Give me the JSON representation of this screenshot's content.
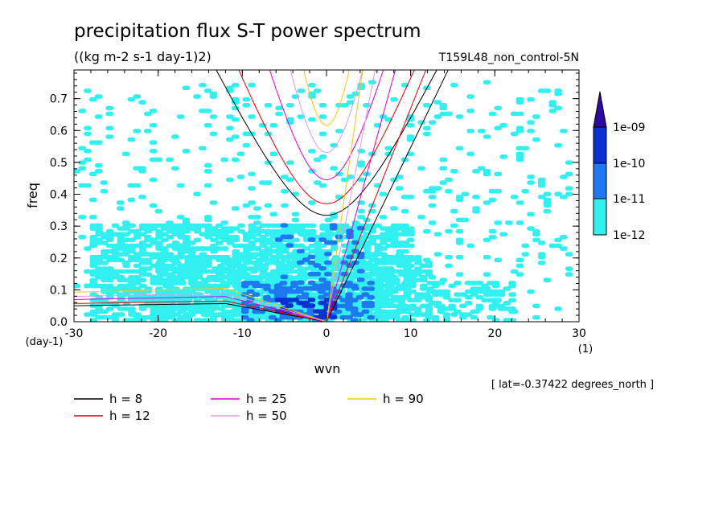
{
  "title": "precipitation flux S-T power spectrum",
  "units": "((kg m-2 s-1 day-1)2)",
  "run_label": "T159L48_non_control-5N",
  "footnote": "[ lat=-0.37422 degrees_north ]",
  "chart_data": {
    "type": "heatmap",
    "xlabel": "wvn",
    "ylabel": "freq",
    "x_unit": "(1)",
    "y_unit": "(day-1)",
    "xlim": [
      -30,
      30
    ],
    "ylim": [
      0,
      0.79
    ],
    "x_ticks": [
      -30,
      -20,
      -10,
      0,
      10,
      20,
      30
    ],
    "x_tick_labels": [
      "-30",
      "-20",
      "-10",
      "0",
      "10",
      "20",
      "30"
    ],
    "y_ticks": [
      0,
      0.1,
      0.2,
      0.3,
      0.4,
      0.5,
      0.6,
      0.7
    ],
    "y_tick_labels": [
      "0.0",
      "0.1",
      "0.2",
      "0.3",
      "0.4",
      "0.5",
      "0.6",
      "0.7"
    ],
    "colorbar": {
      "labels": [
        "1e-12",
        "1e-11",
        "1e-10",
        "1e-09"
      ],
      "colors": [
        "#33f0f0",
        "#1e78f0",
        "#0a32d2",
        "#2d0aa0",
        "#5a28b4"
      ]
    },
    "field_regions": [
      {
        "level": 1,
        "wvn_range": [
          -28,
          10
        ],
        "freq_range": [
          0.0,
          0.3
        ],
        "density": 0.55
      },
      {
        "level": 1,
        "wvn_range": [
          -20,
          12
        ],
        "freq_range": [
          0.0,
          0.2
        ],
        "density": 0.5
      },
      {
        "level": 1,
        "wvn_range": [
          -30,
          29
        ],
        "freq_range": [
          0.0,
          0.75
        ],
        "density": 0.06
      },
      {
        "level": 1,
        "wvn_range": [
          12,
          22
        ],
        "freq_range": [
          0.0,
          0.12
        ],
        "density": 0.35
      },
      {
        "level": 2,
        "wvn_range": [
          -10,
          5
        ],
        "freq_range": [
          0.0,
          0.12
        ],
        "density": 0.35
      },
      {
        "level": 2,
        "wvn_range": [
          -6,
          4
        ],
        "freq_range": [
          0.1,
          0.3
        ],
        "density": 0.12
      },
      {
        "level": 3,
        "wvn_range": [
          -6,
          1
        ],
        "freq_range": [
          0.01,
          0.07
        ],
        "density": 0.45
      }
    ],
    "dispersion_curves": {
      "legend": [
        {
          "label": "h =  8",
          "color": "#000000",
          "h": 8
        },
        {
          "label": "h = 12",
          "color": "#e60000",
          "h": 12
        },
        {
          "label": "h = 25",
          "color": "#dc00dc",
          "h": 25
        },
        {
          "label": "h = 50",
          "color": "#e696e6",
          "h": 50
        },
        {
          "label": "h = 90",
          "color": "#f0c814",
          "h": 90
        }
      ],
      "kelvin_slope_factor": 0.01933,
      "gravity_min_freq": [
        0.334,
        0.37,
        0.445,
        0.53,
        0.615
      ],
      "rossby_min_freq": [
        0.057,
        0.065,
        0.079,
        0.09,
        0.105
      ]
    }
  }
}
